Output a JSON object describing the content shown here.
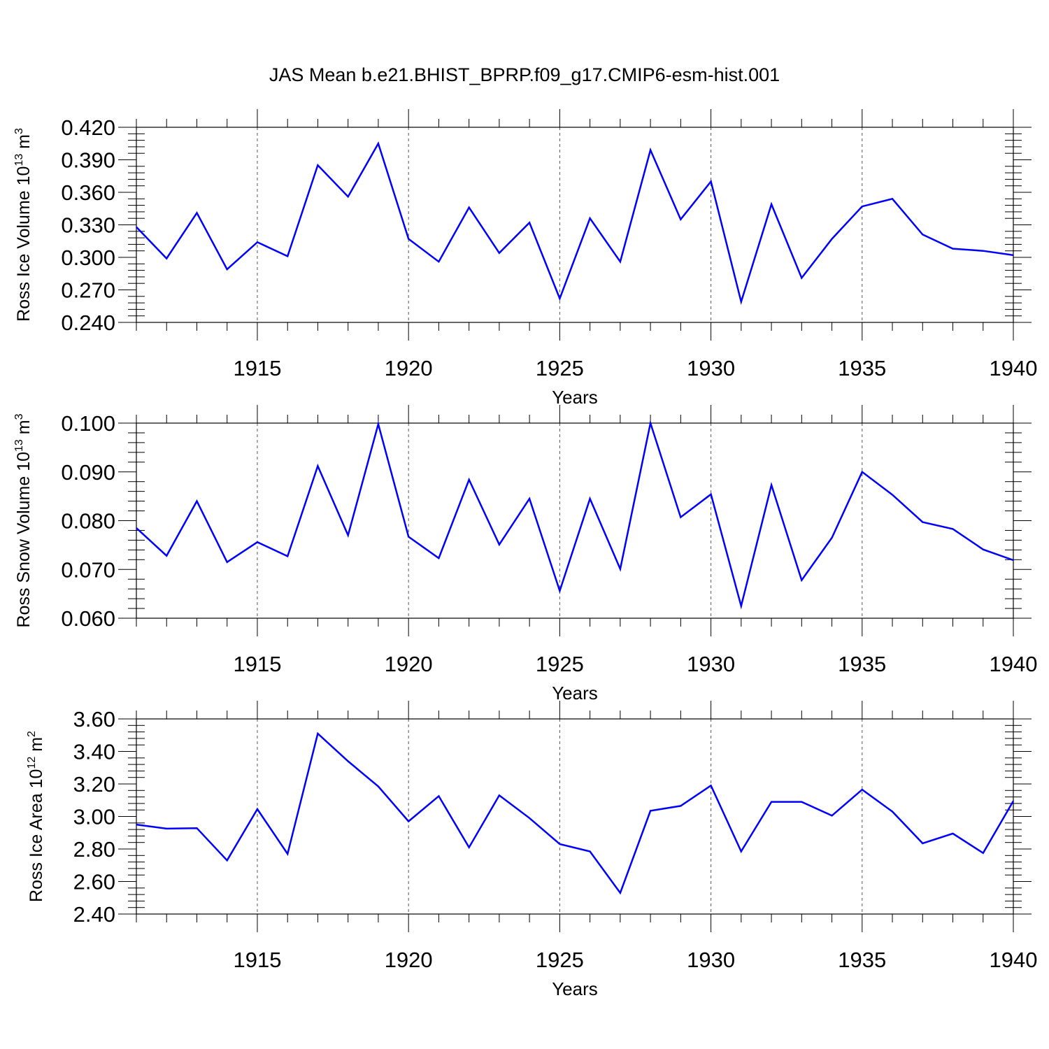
{
  "title": "JAS Mean b.e21.BHIST_BPRP.f09_g17.CMIP6-esm-hist.001",
  "colors": {
    "line": "#0000ff",
    "axis": "#000000",
    "grid": "#555555"
  },
  "chart_data": [
    {
      "type": "line",
      "title": "",
      "xlabel": "Years",
      "ylabel": {
        "text": "Ross Ice Volume 10",
        "sup": "13",
        "unit": " m",
        "unit_sup": "3"
      },
      "xlim": [
        1911,
        1940
      ],
      "ylim": [
        0.24,
        0.42
      ],
      "xticks": [
        1915,
        1920,
        1925,
        1930,
        1935,
        1940
      ],
      "yticks": [
        0.24,
        0.27,
        0.3,
        0.33,
        0.36,
        0.39,
        0.42
      ],
      "ytick_decimals": 3,
      "grid": "vertical dashed at major x ticks",
      "x": [
        1911,
        1912,
        1913,
        1914,
        1915,
        1916,
        1917,
        1918,
        1919,
        1920,
        1921,
        1922,
        1923,
        1924,
        1925,
        1926,
        1927,
        1928,
        1929,
        1930,
        1931,
        1932,
        1933,
        1934,
        1935,
        1936,
        1937,
        1938,
        1939,
        1940
      ],
      "series": [
        {
          "values": [
            0.328,
            0.299,
            0.341,
            0.289,
            0.314,
            0.301,
            0.385,
            0.356,
            0.405,
            0.317,
            0.296,
            0.346,
            0.304,
            0.332,
            0.262,
            0.336,
            0.296,
            0.399,
            0.335,
            0.37,
            0.259,
            0.349,
            0.281,
            0.317,
            0.347,
            0.354,
            0.321,
            0.308,
            0.306,
            0.302
          ]
        }
      ]
    },
    {
      "type": "line",
      "title": "",
      "xlabel": "Years",
      "ylabel": {
        "text": "Ross Snow Volume 10",
        "sup": "13",
        "unit": " m",
        "unit_sup": "3"
      },
      "xlim": [
        1911,
        1940
      ],
      "ylim": [
        0.06,
        0.1
      ],
      "xticks": [
        1915,
        1920,
        1925,
        1930,
        1935,
        1940
      ],
      "yticks": [
        0.06,
        0.07,
        0.08,
        0.09,
        0.1
      ],
      "ytick_decimals": 3,
      "grid": "vertical dashed at major x ticks",
      "x": [
        1911,
        1912,
        1913,
        1914,
        1915,
        1916,
        1917,
        1918,
        1919,
        1920,
        1921,
        1922,
        1923,
        1924,
        1925,
        1926,
        1927,
        1928,
        1929,
        1930,
        1931,
        1932,
        1933,
        1934,
        1935,
        1936,
        1937,
        1938,
        1939,
        1940
      ],
      "series": [
        {
          "values": [
            0.0785,
            0.0728,
            0.084,
            0.0715,
            0.0756,
            0.0727,
            0.0912,
            0.077,
            0.0998,
            0.0767,
            0.0723,
            0.0884,
            0.0751,
            0.0845,
            0.0656,
            0.0845,
            0.0701,
            0.1,
            0.0807,
            0.0854,
            0.0625,
            0.0873,
            0.0678,
            0.0765,
            0.09,
            0.0853,
            0.0797,
            0.0783,
            0.0741,
            0.0719
          ]
        }
      ]
    },
    {
      "type": "line",
      "title": "",
      "xlabel": "Years",
      "ylabel": {
        "text": "Ross Ice Area 10",
        "sup": "12",
        "unit": " m",
        "unit_sup": "2"
      },
      "xlim": [
        1911,
        1940
      ],
      "ylim": [
        2.4,
        3.6
      ],
      "xticks": [
        1915,
        1920,
        1925,
        1930,
        1935,
        1940
      ],
      "yticks": [
        2.4,
        2.6,
        2.8,
        3.0,
        3.2,
        3.4,
        3.6
      ],
      "ytick_decimals": 2,
      "grid": "vertical dashed at major x ticks",
      "x": [
        1911,
        1912,
        1913,
        1914,
        1915,
        1916,
        1917,
        1918,
        1919,
        1920,
        1921,
        1922,
        1923,
        1924,
        1925,
        1926,
        1927,
        1928,
        1929,
        1930,
        1931,
        1932,
        1933,
        1934,
        1935,
        1936,
        1937,
        1938,
        1939,
        1940
      ],
      "series": [
        {
          "values": [
            2.95,
            2.925,
            2.928,
            2.73,
            3.045,
            2.77,
            3.51,
            3.34,
            3.185,
            2.97,
            3.125,
            2.81,
            3.13,
            2.99,
            2.83,
            2.785,
            2.53,
            3.035,
            3.065,
            3.19,
            2.785,
            3.09,
            3.09,
            3.005,
            3.165,
            3.03,
            2.835,
            2.895,
            2.775,
            3.095
          ]
        }
      ]
    }
  ]
}
